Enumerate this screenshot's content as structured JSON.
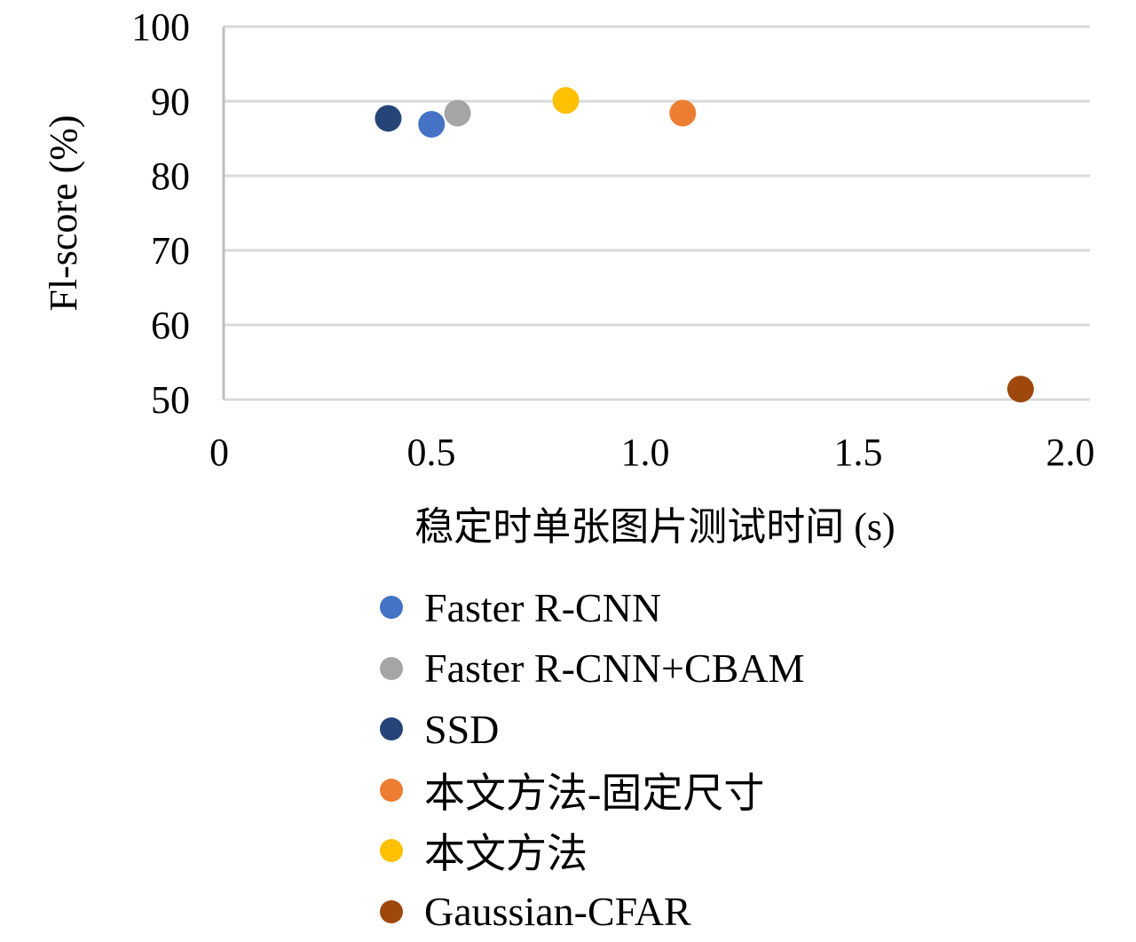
{
  "chart_data": {
    "type": "scatter",
    "xlabel": "稳定时单张图片测试时间 (s)",
    "ylabel": "Fl-score (%)",
    "xlim": [
      0,
      2.0
    ],
    "ylim": [
      50,
      100
    ],
    "x_ticks": [
      "0",
      "0.5",
      "1.0",
      "1.5",
      "2.0"
    ],
    "y_ticks": [
      "50",
      "60",
      "70",
      "80",
      "90",
      "100"
    ],
    "grid": "horizontal",
    "legend_position": "bottom",
    "series": [
      {
        "name": "Faster R-CNN",
        "color": "#4472C4",
        "x": 0.48,
        "y": 86.9
      },
      {
        "name": "Faster R-CNN+CBAM",
        "color": "#A5A5A5",
        "x": 0.54,
        "y": 88.4
      },
      {
        "name": "SSD",
        "color": "#264478",
        "x": 0.38,
        "y": 87.7
      },
      {
        "name": "本文方法-固定尺寸",
        "color": "#ED7D31",
        "x": 1.06,
        "y": 88.4
      },
      {
        "name": "本文方法",
        "color": "#FFC000",
        "x": 0.79,
        "y": 90.1
      },
      {
        "name": "Gaussian-CFAR",
        "color": "#9E480E",
        "x": 1.84,
        "y": 51.4
      }
    ]
  }
}
